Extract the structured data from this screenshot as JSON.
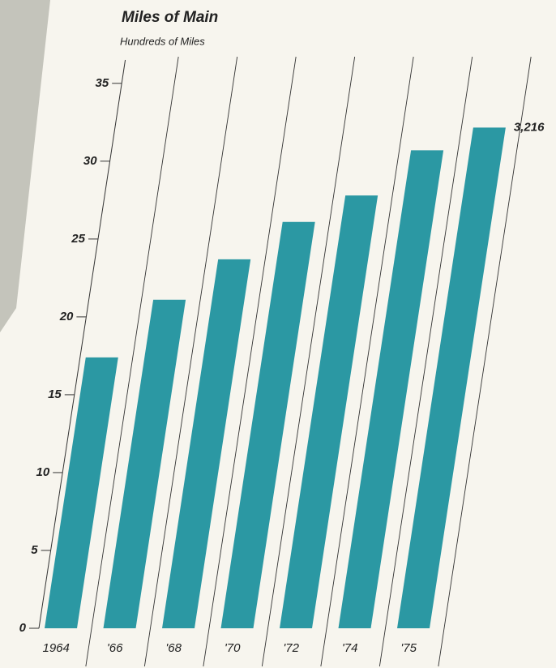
{
  "chart_data": {
    "type": "bar",
    "title": "Miles of Main",
    "subtitle": "Hundreds of Miles",
    "categories": [
      "1964",
      "'66",
      "'68",
      "'70",
      "'72",
      "'74",
      "'75"
    ],
    "values": [
      17.4,
      21.1,
      23.7,
      26.1,
      27.8,
      30.7,
      32.16
    ],
    "value_labels": [
      null,
      null,
      null,
      null,
      null,
      null,
      "3,216"
    ],
    "color": "#2b98a3",
    "ylim": [
      0,
      36.5
    ],
    "yticks": [
      0,
      5,
      10,
      15,
      20,
      25,
      30,
      35
    ]
  }
}
